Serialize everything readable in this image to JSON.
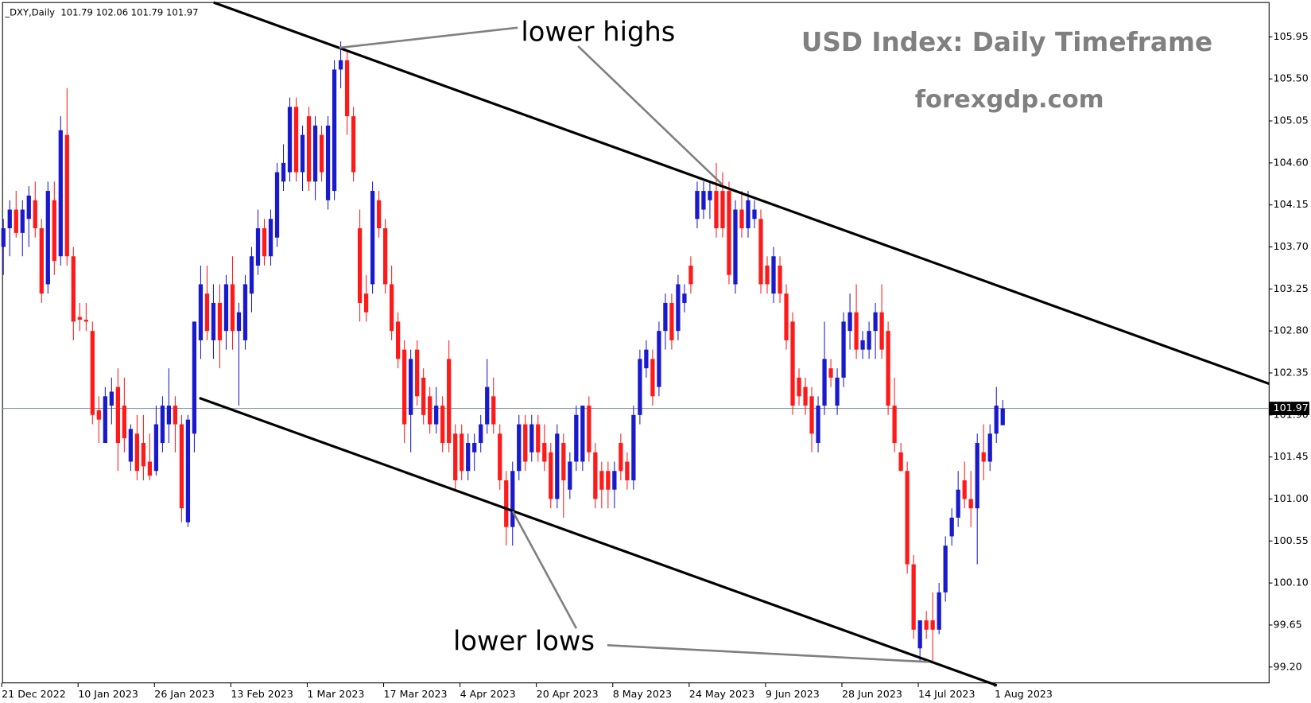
{
  "chart_data": {
    "type": "candlestick",
    "header": "_DXY,Daily  101.79 102.06 101.79 101.97",
    "title": "USD Index: Daily Timeframe",
    "subtitle": "forexgdp.com",
    "annotations": [
      "lower highs",
      "lower lows"
    ],
    "up_color": "#1a1acd",
    "down_color": "#ff1a1a",
    "current_price": 101.97,
    "ylim": [
      99.03,
      106.345
    ],
    "yticks": [
      {
        "value": 99.2,
        "label": "99.20"
      },
      99.65,
      {
        "value": 100.1,
        "label": "100.10"
      },
      100.55,
      {
        "value": 101.0,
        "label": "101.00"
      },
      101.45,
      {
        "value": 101.9,
        "label": "101.90"
      },
      102.35,
      {
        "value": 102.8,
        "label": "102.80"
      },
      103.25,
      {
        "value": 103.7,
        "label": "103.70"
      },
      104.15,
      {
        "value": 104.6,
        "label": "104.60"
      },
      105.05,
      {
        "value": 105.5,
        "label": "105.50"
      },
      105.95
    ],
    "categories": [
      "21 Dec 2022",
      null,
      null,
      null,
      null,
      null,
      null,
      null,
      null,
      null,
      null,
      null,
      "10 Jan 2023",
      null,
      null,
      null,
      null,
      null,
      null,
      null,
      null,
      null,
      null,
      null,
      "26 Jan 2023",
      null,
      null,
      null,
      null,
      null,
      null,
      null,
      null,
      null,
      null,
      null,
      "13 Feb 2023",
      null,
      null,
      null,
      null,
      null,
      null,
      null,
      null,
      null,
      null,
      null,
      "1 Mar 2023",
      null,
      null,
      null,
      null,
      null,
      null,
      null,
      null,
      null,
      null,
      null,
      "17 Mar 2023",
      null,
      null,
      null,
      null,
      null,
      null,
      null,
      null,
      null,
      null,
      null,
      "4 Apr 2023",
      null,
      null,
      null,
      null,
      null,
      null,
      null,
      null,
      null,
      null,
      null,
      "20 Apr 2023",
      null,
      null,
      null,
      null,
      null,
      null,
      null,
      null,
      null,
      null,
      null,
      "8 May 2023",
      null,
      null,
      null,
      null,
      null,
      null,
      null,
      null,
      null,
      null,
      null,
      "24 May 2023",
      null,
      null,
      null,
      null,
      null,
      null,
      null,
      null,
      null,
      null,
      null,
      "9 Jun 2023",
      null,
      null,
      null,
      null,
      null,
      null,
      null,
      null,
      null,
      null,
      null,
      "28 Jun 2023",
      null,
      null,
      null,
      null,
      null,
      null,
      null,
      null,
      null,
      null,
      null,
      "14 Jul 2023",
      null,
      null,
      null,
      null,
      null,
      null,
      null,
      null,
      null,
      null,
      null,
      "1 Aug 2023",
      null
    ],
    "open": [
      103.7,
      103.9,
      104.1,
      103.85,
      104.0,
      104.2,
      103.9,
      103.3,
      104.2,
      103.6,
      104.9,
      103.6,
      102.95,
      102.92,
      102.8,
      101.95,
      101.6,
      102.0,
      102.2,
      102.0,
      101.4,
      101.7,
      101.6,
      101.4,
      101.3,
      101.6,
      101.8,
      102.0,
      101.8,
      100.75,
      101.7,
      102.7,
      103.2,
      102.7,
      103.1,
      102.8,
      103.3,
      102.8,
      102.7,
      103.2,
      103.5,
      103.9,
      103.6,
      103.8,
      104.4,
      104.5,
      105.2,
      104.5,
      105.1,
      104.4,
      104.9,
      104.2,
      104.3,
      105.6,
      105.7,
      105.1,
      103.9,
      103.2,
      103.3,
      104.2,
      103.9,
      103.3,
      102.9,
      102.6,
      101.9,
      102.6,
      102.3,
      102.1,
      101.8,
      102.0,
      102.5,
      101.7,
      101.7,
      101.3,
      101.5,
      101.6,
      101.8,
      102.1,
      101.7,
      101.2,
      100.7,
      101.3,
      101.8,
      101.5,
      101.8,
      101.6,
      101.5,
      101.0,
      101.6,
      101.1,
      101.4,
      101.4,
      102.0,
      101.5,
      101.3,
      101.3,
      101.1,
      101.6,
      101.4,
      101.2,
      101.9,
      102.4,
      102.5,
      102.2,
      102.8,
      103.1,
      102.8,
      103.1,
      103.5,
      104.0,
      104.1,
      104.2,
      104.3,
      104.3,
      104.3,
      103.3,
      104.1,
      103.9,
      104.0,
      104.0,
      103.5,
      103.2,
      103.5,
      103.2,
      102.9,
      102.3,
      102.2,
      102.1,
      101.6,
      102.0,
      102.4,
      102.0,
      102.3,
      102.8,
      103.0,
      102.6,
      102.6,
      102.8,
      103.0,
      102.8,
      102.0,
      101.5,
      101.3,
      100.3,
      99.4,
      99.7,
      99.7,
      99.6,
      100.0,
      100.6,
      100.8,
      101.2,
      101.0,
      100.9,
      101.5,
      101.4,
      101.7,
      101.79
    ],
    "high": [
      104.0,
      104.2,
      104.3,
      104.2,
      104.35,
      104.4,
      104.0,
      104.4,
      104.4,
      105.1,
      105.4,
      103.7,
      103.1,
      103.1,
      102.9,
      102.1,
      102.2,
      102.3,
      102.4,
      102.3,
      101.8,
      101.9,
      101.9,
      101.7,
      102.0,
      102.1,
      102.4,
      102.1,
      101.9,
      101.9,
      102.9,
      103.5,
      103.5,
      103.3,
      103.3,
      103.4,
      103.6,
      103.1,
      103.4,
      103.7,
      104.1,
      104.0,
      104.1,
      104.6,
      104.8,
      105.3,
      105.3,
      105.0,
      105.2,
      105.1,
      105.0,
      105.1,
      105.7,
      105.9,
      105.8,
      105.2,
      104.1,
      103.4,
      104.4,
      104.3,
      104.0,
      103.5,
      103.0,
      102.7,
      102.6,
      102.7,
      102.4,
      102.2,
      102.2,
      102.1,
      102.7,
      101.8,
      101.8,
      101.7,
      101.7,
      101.9,
      102.5,
      102.3,
      101.8,
      101.3,
      101.4,
      101.9,
      101.9,
      101.9,
      101.9,
      101.8,
      101.6,
      101.8,
      101.7,
      101.5,
      102.0,
      102.0,
      102.1,
      101.6,
      101.4,
      101.4,
      101.4,
      101.7,
      101.5,
      102.0,
      102.6,
      102.7,
      102.6,
      102.9,
      103.2,
      103.2,
      103.4,
      103.3,
      103.6,
      104.4,
      104.4,
      104.4,
      104.6,
      104.5,
      104.4,
      104.2,
      104.3,
      104.3,
      104.2,
      104.1,
      103.6,
      103.7,
      103.6,
      103.3,
      103.0,
      102.4,
      102.3,
      102.2,
      102.1,
      102.9,
      102.5,
      102.4,
      103.0,
      103.2,
      103.3,
      102.8,
      102.9,
      103.1,
      103.3,
      102.9,
      102.3,
      101.6,
      101.4,
      100.4,
      99.7,
      99.8,
      100.0,
      100.1,
      100.6,
      100.9,
      101.3,
      101.4,
      101.3,
      101.7,
      101.8,
      101.8,
      102.2,
      102.06
    ],
    "low": [
      103.4,
      103.6,
      103.8,
      103.6,
      103.7,
      103.8,
      103.1,
      103.2,
      103.4,
      103.5,
      103.5,
      102.7,
      102.8,
      102.8,
      101.8,
      101.6,
      101.6,
      101.8,
      101.3,
      101.5,
      101.3,
      101.2,
      101.2,
      101.2,
      101.25,
      101.5,
      101.6,
      101.5,
      100.75,
      100.7,
      101.5,
      102.5,
      102.7,
      102.5,
      102.4,
      102.6,
      102.6,
      102.0,
      102.6,
      103.0,
      103.4,
      103.5,
      103.5,
      103.7,
      104.3,
      104.4,
      104.4,
      104.3,
      104.3,
      104.2,
      104.4,
      104.1,
      104.2,
      105.4,
      104.9,
      104.4,
      102.9,
      102.9,
      103.2,
      103.8,
      103.2,
      102.7,
      102.4,
      101.6,
      101.5,
      102.0,
      101.8,
      101.7,
      101.7,
      101.5,
      101.5,
      101.1,
      101.2,
      101.2,
      101.3,
      101.5,
      101.7,
      101.7,
      101.1,
      100.5,
      100.5,
      101.2,
      101.3,
      101.4,
      101.4,
      101.3,
      100.9,
      100.9,
      100.8,
      101.0,
      101.3,
      101.3,
      101.4,
      100.9,
      100.9,
      100.9,
      100.9,
      101.2,
      101.1,
      101.1,
      101.8,
      102.3,
      102.0,
      102.1,
      102.6,
      102.6,
      102.7,
      103.0,
      103.2,
      103.9,
      104.0,
      104.0,
      103.8,
      103.8,
      103.3,
      103.2,
      103.8,
      103.8,
      103.9,
      103.2,
      103.2,
      103.1,
      103.1,
      102.6,
      101.9,
      102.0,
      101.9,
      101.5,
      101.5,
      101.9,
      102.2,
      101.9,
      102.2,
      102.6,
      102.5,
      102.5,
      102.5,
      102.5,
      102.5,
      101.9,
      101.5,
      101.3,
      100.2,
      99.5,
      99.25,
      99.5,
      99.25,
      99.55,
      99.9,
      100.5,
      100.7,
      100.9,
      100.7,
      100.3,
      101.2,
      101.3,
      101.6,
      101.79
    ],
    "close": [
      103.9,
      104.1,
      103.85,
      104.1,
      104.25,
      103.9,
      103.2,
      104.3,
      103.55,
      104.95,
      103.6,
      102.9,
      102.92,
      102.9,
      101.9,
      101.85,
      102.1,
      102.15,
      101.6,
      101.65,
      101.75,
      101.3,
      101.35,
      101.25,
      101.8,
      102.0,
      102.0,
      101.8,
      100.9,
      101.85,
      102.9,
      103.3,
      102.8,
      103.1,
      102.7,
      103.3,
      102.8,
      103.0,
      103.3,
      103.6,
      103.9,
      103.6,
      104.0,
      104.5,
      104.6,
      105.2,
      104.5,
      104.9,
      104.4,
      105.0,
      104.5,
      105.0,
      105.6,
      105.7,
      105.1,
      104.5,
      103.1,
      103.0,
      104.3,
      103.9,
      103.3,
      102.8,
      102.5,
      101.8,
      102.5,
      102.1,
      101.9,
      101.8,
      102.0,
      101.6,
      101.6,
      101.2,
      101.3,
      101.6,
      101.6,
      101.8,
      102.2,
      101.8,
      101.2,
      100.7,
      101.3,
      101.8,
      101.4,
      101.8,
      101.5,
      101.4,
      101.0,
      101.7,
      101.2,
      101.4,
      101.9,
      102.0,
      101.5,
      101.0,
      101.1,
      101.1,
      101.3,
      101.3,
      101.2,
      101.9,
      102.5,
      102.6,
      102.1,
      102.8,
      103.1,
      102.7,
      103.3,
      103.2,
      103.3,
      104.3,
      104.3,
      104.3,
      103.9,
      103.9,
      103.4,
      104.1,
      103.9,
      104.2,
      104.1,
      103.3,
      103.3,
      103.6,
      103.2,
      102.7,
      102.0,
      102.1,
      102.0,
      101.7,
      102.0,
      102.5,
      102.3,
      102.3,
      102.9,
      103.0,
      102.6,
      102.7,
      102.8,
      103.0,
      102.6,
      102.0,
      101.6,
      101.3,
      100.3,
      99.6,
      99.7,
      99.6,
      99.6,
      100.0,
      100.5,
      100.8,
      101.1,
      101.0,
      100.9,
      101.6,
      101.4,
      101.7,
      102.0,
      101.97
    ]
  }
}
